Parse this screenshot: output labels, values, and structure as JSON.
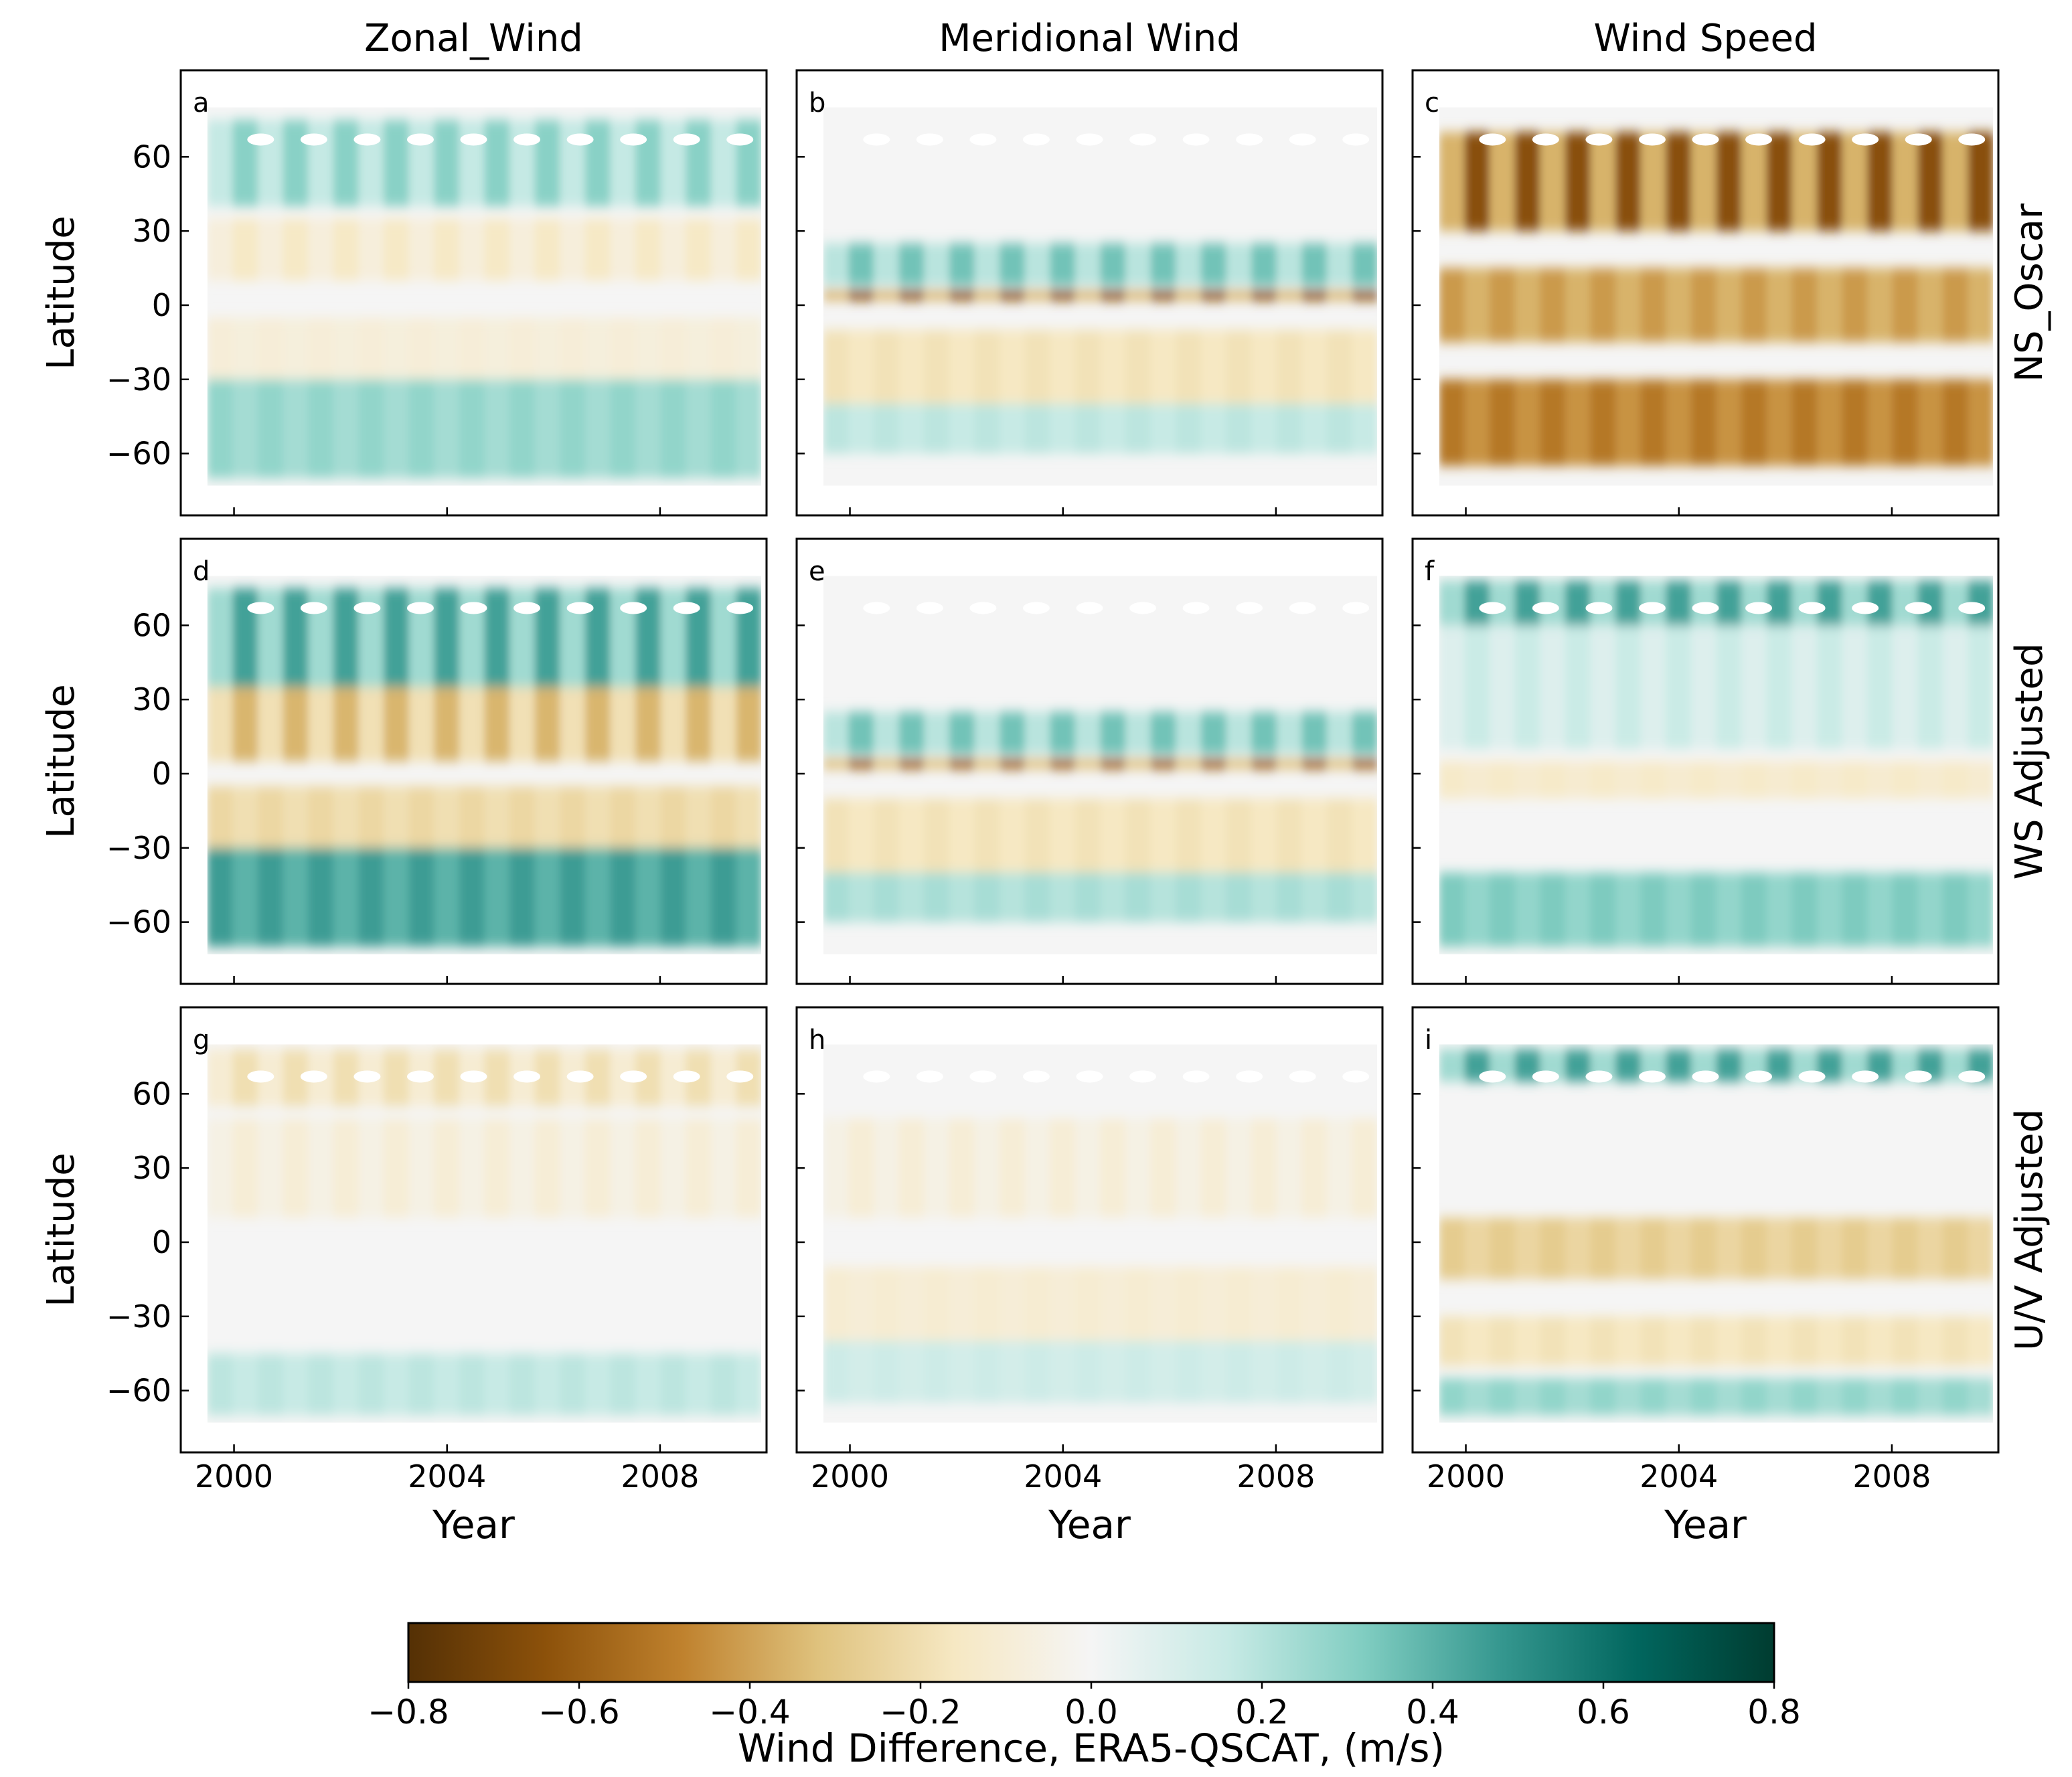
{
  "chart_data": {
    "type": "heatmap",
    "layout": "3x3 panel grid",
    "columns": [
      "Zonal_Wind",
      "Meridional Wind",
      "Wind Speed"
    ],
    "rows": [
      "NS_Oscar",
      "WS Adjusted",
      "U/V Adjusted"
    ],
    "panel_letters": [
      "a",
      "b",
      "c",
      "d",
      "e",
      "f",
      "g",
      "h",
      "i"
    ],
    "xlabel": "Year",
    "ylabel": "Latitude",
    "x_ticks": [
      "2000",
      "2004",
      "2008"
    ],
    "x_tick_values": [
      2000,
      2004,
      2008
    ],
    "xlim": [
      1999,
      2010
    ],
    "y_ticks": [
      "60",
      "30",
      "0",
      "−30",
      "−60"
    ],
    "y_tick_values": [
      60,
      30,
      0,
      -30,
      -60
    ],
    "ylim": [
      -85,
      95
    ],
    "data_lat_extent": [
      -73,
      80
    ],
    "data_time_extent": [
      1999.5,
      2009.9
    ],
    "colorbar": {
      "label": "Wind Difference, ERA5-QSCAT, (m/s)",
      "range": [
        -0.8,
        0.8
      ],
      "ticks": [
        "−0.8",
        "−0.6",
        "−0.4",
        "−0.2",
        "0.0",
        "0.2",
        "0.4",
        "0.6",
        "0.8"
      ],
      "tick_values": [
        -0.8,
        -0.6,
        -0.4,
        -0.2,
        0.0,
        0.2,
        0.4,
        0.6,
        0.8
      ],
      "colormap": "BrBG",
      "color_stops": [
        "#543005",
        "#8c510a",
        "#bf812d",
        "#dfc27d",
        "#f6e8c3",
        "#f5f5f5",
        "#c7eae5",
        "#80cdc1",
        "#35978f",
        "#01665e",
        "#003c30"
      ]
    },
    "panels": [
      {
        "letter": "a",
        "row": "NS_Oscar",
        "column": "Zonal_Wind",
        "bands": [
          {
            "lat": [
              40,
              75
            ],
            "value": 0.3
          },
          {
            "lat": [
              10,
              35
            ],
            "value": -0.15
          },
          {
            "lat": [
              -30,
              -5
            ],
            "value": -0.1
          },
          {
            "lat": [
              -70,
              -30
            ],
            "value": 0.3
          }
        ]
      },
      {
        "letter": "b",
        "row": "NS_Oscar",
        "column": "Meridional Wind",
        "bands": [
          {
            "lat": [
              8,
              25
            ],
            "value": 0.35
          },
          {
            "lat": [
              2,
              6
            ],
            "value": -0.65
          },
          {
            "lat": [
              -40,
              -10
            ],
            "value": -0.2
          },
          {
            "lat": [
              -60,
              -40
            ],
            "value": 0.2
          }
        ]
      },
      {
        "letter": "c",
        "row": "NS_Oscar",
        "column": "Wind Speed",
        "bands": [
          {
            "lat": [
              30,
              70
            ],
            "value": -0.65
          },
          {
            "lat": [
              -15,
              15
            ],
            "value": -0.45
          },
          {
            "lat": [
              -65,
              -30
            ],
            "value": -0.55
          }
        ]
      },
      {
        "letter": "d",
        "row": "WS Adjusted",
        "column": "Zonal_Wind",
        "bands": [
          {
            "lat": [
              35,
              75
            ],
            "value": 0.45
          },
          {
            "lat": [
              5,
              35
            ],
            "value": -0.35
          },
          {
            "lat": [
              -30,
              -5
            ],
            "value": -0.25
          },
          {
            "lat": [
              -70,
              -30
            ],
            "value": 0.5
          }
        ]
      },
      {
        "letter": "e",
        "row": "WS Adjusted",
        "column": "Meridional Wind",
        "bands": [
          {
            "lat": [
              8,
              25
            ],
            "value": 0.35
          },
          {
            "lat": [
              2,
              6
            ],
            "value": -0.6
          },
          {
            "lat": [
              -40,
              -10
            ],
            "value": -0.2
          },
          {
            "lat": [
              -60,
              -40
            ],
            "value": 0.25
          }
        ]
      },
      {
        "letter": "f",
        "row": "WS Adjusted",
        "column": "Wind Speed",
        "bands": [
          {
            "lat": [
              60,
              78
            ],
            "value": 0.45
          },
          {
            "lat": [
              10,
              60
            ],
            "value": 0.15
          },
          {
            "lat": [
              -10,
              5
            ],
            "value": -0.15
          },
          {
            "lat": [
              -70,
              -40
            ],
            "value": 0.35
          }
        ]
      },
      {
        "letter": "g",
        "row": "U/V Adjusted",
        "column": "Zonal_Wind",
        "bands": [
          {
            "lat": [
              55,
              78
            ],
            "value": -0.2
          },
          {
            "lat": [
              10,
              50
            ],
            "value": -0.1
          },
          {
            "lat": [
              -70,
              -45
            ],
            "value": 0.2
          }
        ]
      },
      {
        "letter": "h",
        "row": "U/V Adjusted",
        "column": "Meridional Wind",
        "bands": [
          {
            "lat": [
              10,
              50
            ],
            "value": -0.1
          },
          {
            "lat": [
              -40,
              -10
            ],
            "value": -0.12
          },
          {
            "lat": [
              -65,
              -40
            ],
            "value": 0.15
          }
        ]
      },
      {
        "letter": "i",
        "row": "U/V Adjusted",
        "column": "Wind Speed",
        "bands": [
          {
            "lat": [
              65,
              78
            ],
            "value": 0.45
          },
          {
            "lat": [
              -15,
              10
            ],
            "value": -0.3
          },
          {
            "lat": [
              -50,
              -30
            ],
            "value": -0.2
          },
          {
            "lat": [
              -70,
              -55
            ],
            "value": 0.3
          }
        ]
      }
    ]
  }
}
